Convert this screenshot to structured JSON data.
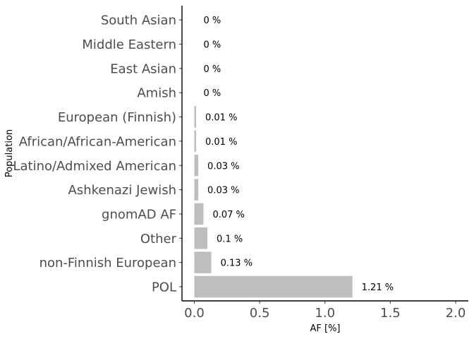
{
  "chart_data": {
    "type": "bar",
    "orientation": "horizontal",
    "xlabel": "AF [%]",
    "ylabel": "Population",
    "xlim": [
      0,
      2.0
    ],
    "xticks": [
      "0.0",
      "0.5",
      "1.0",
      "1.5",
      "2.0"
    ],
    "xtick_values": [
      0,
      0.5,
      1.0,
      1.5,
      2.0
    ],
    "grid": false,
    "bar_color": "#bebebe",
    "categories": [
      "POL",
      "non-Finnish European",
      "Other",
      "gnomAD AF",
      "Ashkenazi Jewish",
      "Latino/Admixed American",
      "African/African-American",
      "European (Finnish)",
      "Amish",
      "East Asian",
      "Middle Eastern",
      "South Asian"
    ],
    "values": [
      1.21,
      0.13,
      0.1,
      0.07,
      0.03,
      0.03,
      0.01,
      0.01,
      0,
      0,
      0,
      0
    ],
    "value_labels": [
      "1.21 %",
      "0.13 %",
      "0.1 %",
      "0.07 %",
      "0.03 %",
      "0.03 %",
      "0.01 %",
      "0.01 %",
      "0 %",
      "0 %",
      "0 %",
      "0 %"
    ]
  }
}
